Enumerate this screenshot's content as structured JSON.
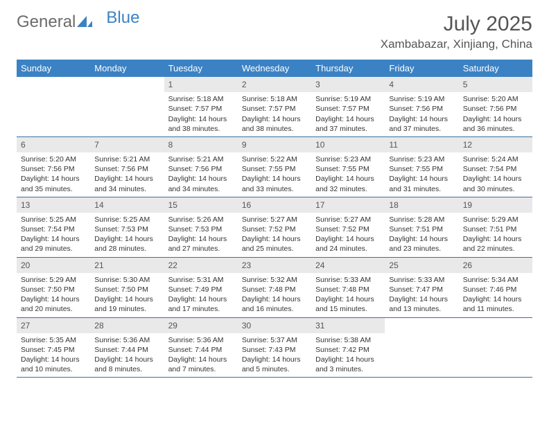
{
  "logo": {
    "text1": "General",
    "text2": "Blue"
  },
  "title": "July 2025",
  "location": "Xambabazar, Xinjiang, China",
  "colors": {
    "header_bg": "#3b82c4",
    "header_text": "#ffffff",
    "daynum_bg": "#e9e9e9",
    "rule": "#3b6fa0",
    "body_text": "#333333",
    "title_text": "#555555"
  },
  "fonts": {
    "title_size": 30,
    "location_size": 17,
    "weekday_size": 13,
    "cell_size": 10.5
  },
  "weekdays": [
    "Sunday",
    "Monday",
    "Tuesday",
    "Wednesday",
    "Thursday",
    "Friday",
    "Saturday"
  ],
  "layout": {
    "lead_blanks": 2,
    "trail_blanks": 2,
    "rows": 5,
    "cols": 7
  },
  "days": [
    {
      "n": "1",
      "sunrise": "5:18 AM",
      "sunset": "7:57 PM",
      "daylight": "14 hours and 38 minutes."
    },
    {
      "n": "2",
      "sunrise": "5:18 AM",
      "sunset": "7:57 PM",
      "daylight": "14 hours and 38 minutes."
    },
    {
      "n": "3",
      "sunrise": "5:19 AM",
      "sunset": "7:57 PM",
      "daylight": "14 hours and 37 minutes."
    },
    {
      "n": "4",
      "sunrise": "5:19 AM",
      "sunset": "7:56 PM",
      "daylight": "14 hours and 37 minutes."
    },
    {
      "n": "5",
      "sunrise": "5:20 AM",
      "sunset": "7:56 PM",
      "daylight": "14 hours and 36 minutes."
    },
    {
      "n": "6",
      "sunrise": "5:20 AM",
      "sunset": "7:56 PM",
      "daylight": "14 hours and 35 minutes."
    },
    {
      "n": "7",
      "sunrise": "5:21 AM",
      "sunset": "7:56 PM",
      "daylight": "14 hours and 34 minutes."
    },
    {
      "n": "8",
      "sunrise": "5:21 AM",
      "sunset": "7:56 PM",
      "daylight": "14 hours and 34 minutes."
    },
    {
      "n": "9",
      "sunrise": "5:22 AM",
      "sunset": "7:55 PM",
      "daylight": "14 hours and 33 minutes."
    },
    {
      "n": "10",
      "sunrise": "5:23 AM",
      "sunset": "7:55 PM",
      "daylight": "14 hours and 32 minutes."
    },
    {
      "n": "11",
      "sunrise": "5:23 AM",
      "sunset": "7:55 PM",
      "daylight": "14 hours and 31 minutes."
    },
    {
      "n": "12",
      "sunrise": "5:24 AM",
      "sunset": "7:54 PM",
      "daylight": "14 hours and 30 minutes."
    },
    {
      "n": "13",
      "sunrise": "5:25 AM",
      "sunset": "7:54 PM",
      "daylight": "14 hours and 29 minutes."
    },
    {
      "n": "14",
      "sunrise": "5:25 AM",
      "sunset": "7:53 PM",
      "daylight": "14 hours and 28 minutes."
    },
    {
      "n": "15",
      "sunrise": "5:26 AM",
      "sunset": "7:53 PM",
      "daylight": "14 hours and 27 minutes."
    },
    {
      "n": "16",
      "sunrise": "5:27 AM",
      "sunset": "7:52 PM",
      "daylight": "14 hours and 25 minutes."
    },
    {
      "n": "17",
      "sunrise": "5:27 AM",
      "sunset": "7:52 PM",
      "daylight": "14 hours and 24 minutes."
    },
    {
      "n": "18",
      "sunrise": "5:28 AM",
      "sunset": "7:51 PM",
      "daylight": "14 hours and 23 minutes."
    },
    {
      "n": "19",
      "sunrise": "5:29 AM",
      "sunset": "7:51 PM",
      "daylight": "14 hours and 22 minutes."
    },
    {
      "n": "20",
      "sunrise": "5:29 AM",
      "sunset": "7:50 PM",
      "daylight": "14 hours and 20 minutes."
    },
    {
      "n": "21",
      "sunrise": "5:30 AM",
      "sunset": "7:50 PM",
      "daylight": "14 hours and 19 minutes."
    },
    {
      "n": "22",
      "sunrise": "5:31 AM",
      "sunset": "7:49 PM",
      "daylight": "14 hours and 17 minutes."
    },
    {
      "n": "23",
      "sunrise": "5:32 AM",
      "sunset": "7:48 PM",
      "daylight": "14 hours and 16 minutes."
    },
    {
      "n": "24",
      "sunrise": "5:33 AM",
      "sunset": "7:48 PM",
      "daylight": "14 hours and 15 minutes."
    },
    {
      "n": "25",
      "sunrise": "5:33 AM",
      "sunset": "7:47 PM",
      "daylight": "14 hours and 13 minutes."
    },
    {
      "n": "26",
      "sunrise": "5:34 AM",
      "sunset": "7:46 PM",
      "daylight": "14 hours and 11 minutes."
    },
    {
      "n": "27",
      "sunrise": "5:35 AM",
      "sunset": "7:45 PM",
      "daylight": "14 hours and 10 minutes."
    },
    {
      "n": "28",
      "sunrise": "5:36 AM",
      "sunset": "7:44 PM",
      "daylight": "14 hours and 8 minutes."
    },
    {
      "n": "29",
      "sunrise": "5:36 AM",
      "sunset": "7:44 PM",
      "daylight": "14 hours and 7 minutes."
    },
    {
      "n": "30",
      "sunrise": "5:37 AM",
      "sunset": "7:43 PM",
      "daylight": "14 hours and 5 minutes."
    },
    {
      "n": "31",
      "sunrise": "5:38 AM",
      "sunset": "7:42 PM",
      "daylight": "14 hours and 3 minutes."
    }
  ],
  "labels": {
    "sunrise": "Sunrise: ",
    "sunset": "Sunset: ",
    "daylight": "Daylight: "
  }
}
